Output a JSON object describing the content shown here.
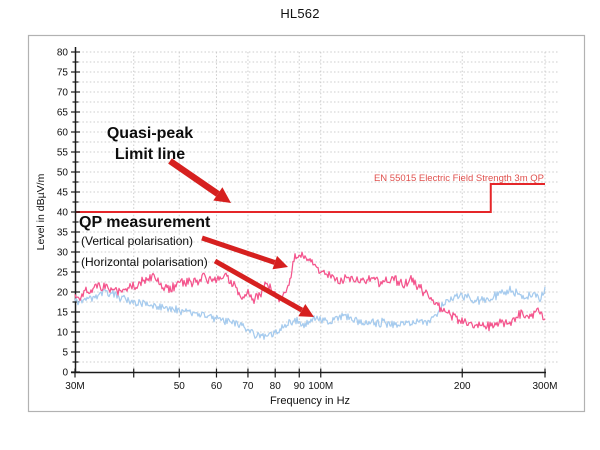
{
  "page": {
    "title": "HL562"
  },
  "chart_data": {
    "type": "line",
    "title": "HL562",
    "xlabel": "Frequency in Hz",
    "ylabel": "Level in dBµV/m",
    "x_scale": "log",
    "x_range_mhz": [
      30,
      300
    ],
    "ylim": [
      0,
      80
    ],
    "y_tick_step": 5,
    "y_minor_step": 2.5,
    "grid": true,
    "x_ticks": [
      {
        "mhz": 30,
        "label": "30M"
      },
      {
        "mhz": 40,
        "label": ""
      },
      {
        "mhz": 50,
        "label": "50"
      },
      {
        "mhz": 60,
        "label": "60"
      },
      {
        "mhz": 70,
        "label": "70"
      },
      {
        "mhz": 80,
        "label": "80"
      },
      {
        "mhz": 90,
        "label": "90"
      },
      {
        "mhz": 100,
        "label": "100M"
      },
      {
        "mhz": 200,
        "label": "200"
      },
      {
        "mhz": 300,
        "label": "300M"
      }
    ],
    "limit_line": {
      "label": "EN 55015 Electric Field Strength 3m QP",
      "color": "#e52629",
      "label_color": "#e0504d",
      "points_mhz_db": [
        [
          30,
          40
        ],
        [
          230,
          40
        ],
        [
          230,
          47
        ],
        [
          300,
          47
        ]
      ]
    },
    "series": [
      {
        "name": "QP measurement (Vertical polarisation)",
        "color": "#f4558d",
        "noise_db": 1.0,
        "points_mhz_db": [
          [
            30,
            18
          ],
          [
            32,
            20.5
          ],
          [
            34,
            21.5
          ],
          [
            36,
            20.5
          ],
          [
            38,
            20
          ],
          [
            40,
            21.5
          ],
          [
            42,
            23
          ],
          [
            44,
            23.5
          ],
          [
            46,
            21.5
          ],
          [
            48,
            20.5
          ],
          [
            50,
            22
          ],
          [
            53,
            22.5
          ],
          [
            56,
            23.5
          ],
          [
            59,
            23
          ],
          [
            62,
            24
          ],
          [
            64,
            22.5
          ],
          [
            66,
            21
          ],
          [
            68,
            18.5
          ],
          [
            70,
            20.5
          ],
          [
            72,
            17.5
          ],
          [
            74,
            19.5
          ],
          [
            76,
            21.5
          ],
          [
            78,
            21
          ],
          [
            80,
            19.5
          ],
          [
            82,
            18.5
          ],
          [
            83,
            19.5
          ],
          [
            84,
            20.5
          ],
          [
            85,
            20.5
          ],
          [
            86,
            23
          ],
          [
            87,
            26.5
          ],
          [
            88,
            29
          ],
          [
            90,
            29.5
          ],
          [
            92,
            29
          ],
          [
            94,
            28.5
          ],
          [
            96,
            27.5
          ],
          [
            98,
            26.5
          ],
          [
            100,
            25.5
          ],
          [
            103,
            24.5
          ],
          [
            106,
            23.5
          ],
          [
            110,
            22.5
          ],
          [
            113,
            23.5
          ],
          [
            116,
            23
          ],
          [
            120,
            22.5
          ],
          [
            123,
            23
          ],
          [
            126,
            23.5
          ],
          [
            130,
            23
          ],
          [
            134,
            22
          ],
          [
            137,
            22.5
          ],
          [
            140,
            23
          ],
          [
            144,
            23.5
          ],
          [
            148,
            22
          ],
          [
            152,
            22.5
          ],
          [
            156,
            23
          ],
          [
            160,
            21.5
          ],
          [
            164,
            20.5
          ],
          [
            168,
            19.5
          ],
          [
            172,
            18
          ],
          [
            176,
            17
          ],
          [
            180,
            16
          ],
          [
            185,
            15
          ],
          [
            190,
            14
          ],
          [
            195,
            13.5
          ],
          [
            200,
            12.5
          ],
          [
            210,
            12
          ],
          [
            220,
            11.8
          ],
          [
            230,
            11.5
          ],
          [
            240,
            12
          ],
          [
            250,
            12.5
          ],
          [
            258,
            13.5
          ],
          [
            266,
            14
          ],
          [
            274,
            14.5
          ],
          [
            282,
            14.5
          ],
          [
            288,
            15.5
          ],
          [
            293,
            15.5
          ],
          [
            297,
            14.5
          ],
          [
            300,
            13.5
          ]
        ]
      },
      {
        "name": "QP measurement (Horizontal polarisation)",
        "color": "#a6cbee",
        "noise_db": 0.8,
        "points_mhz_db": [
          [
            30,
            17.5
          ],
          [
            32,
            18.5
          ],
          [
            34,
            19.5
          ],
          [
            35,
            20
          ],
          [
            37,
            19
          ],
          [
            39,
            18
          ],
          [
            41,
            17.5
          ],
          [
            43,
            17
          ],
          [
            45,
            16.5
          ],
          [
            47,
            16
          ],
          [
            50,
            15.5
          ],
          [
            53,
            15
          ],
          [
            56,
            14.5
          ],
          [
            59,
            13.5
          ],
          [
            62,
            13
          ],
          [
            65,
            12.5
          ],
          [
            68,
            11.5
          ],
          [
            70,
            10.5
          ],
          [
            72,
            9.5
          ],
          [
            74,
            9
          ],
          [
            76,
            9
          ],
          [
            78,
            9.5
          ],
          [
            80,
            10
          ],
          [
            82,
            10.5
          ],
          [
            84,
            11.5
          ],
          [
            86,
            12.5
          ],
          [
            88,
            13
          ],
          [
            90,
            12.5
          ],
          [
            92,
            11.5
          ],
          [
            94,
            12
          ],
          [
            96,
            13
          ],
          [
            98,
            13.5
          ],
          [
            100,
            13
          ],
          [
            104,
            12.5
          ],
          [
            108,
            13
          ],
          [
            112,
            14
          ],
          [
            116,
            13.5
          ],
          [
            120,
            12.5
          ],
          [
            124,
            12
          ],
          [
            128,
            12.5
          ],
          [
            132,
            12
          ],
          [
            136,
            12.5
          ],
          [
            140,
            12
          ],
          [
            144,
            11.5
          ],
          [
            148,
            12
          ],
          [
            152,
            12.5
          ],
          [
            156,
            12
          ],
          [
            160,
            12.5
          ],
          [
            164,
            12.5
          ],
          [
            168,
            12
          ],
          [
            172,
            13
          ],
          [
            176,
            14
          ],
          [
            180,
            16
          ],
          [
            185,
            17.5
          ],
          [
            190,
            18.5
          ],
          [
            195,
            19
          ],
          [
            200,
            19
          ],
          [
            207,
            18.5
          ],
          [
            214,
            18
          ],
          [
            221,
            18
          ],
          [
            228,
            18
          ],
          [
            235,
            19
          ],
          [
            242,
            19.5
          ],
          [
            250,
            20.5
          ],
          [
            257,
            20
          ],
          [
            264,
            19.5
          ],
          [
            271,
            19
          ],
          [
            278,
            19
          ],
          [
            285,
            19.5
          ],
          [
            290,
            18.5
          ],
          [
            293,
            18
          ],
          [
            296,
            19
          ],
          [
            300,
            20.5
          ]
        ]
      }
    ],
    "annotations": {
      "arrow_color": "#d6201f",
      "limit_callout": {
        "lines": [
          "Quasi-peak",
          "Limit line"
        ]
      },
      "measurement_callout": {
        "title": "QP measurement",
        "vertical_label": "(Vertical polarisation)",
        "horizontal_label": "(Horizontal polarisation)"
      }
    }
  }
}
